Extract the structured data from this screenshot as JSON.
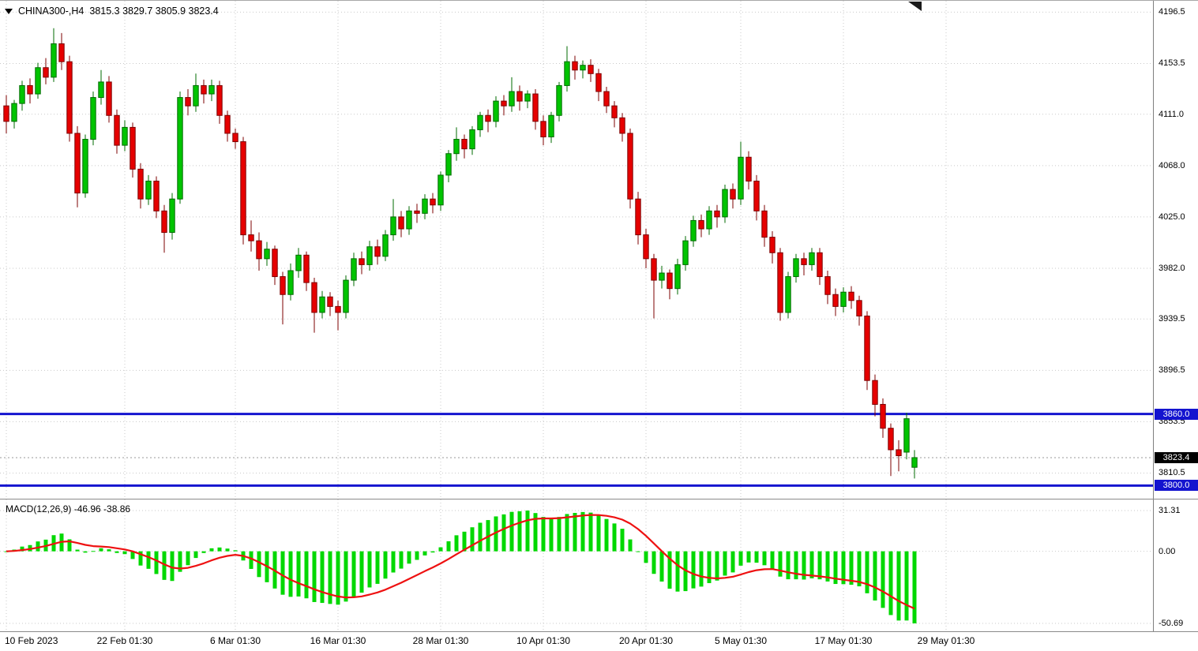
{
  "header": {
    "symbol": "CHINA300-,H4",
    "ohlc": "3815.3 3829.7 3805.9 3823.4"
  },
  "macd_panel": {
    "label": "MACD(12,26,9) -46.96 -38.86",
    "tick_max": "31.31",
    "tick_zero": "0.00",
    "tick_min": "-50.69"
  },
  "colors": {
    "bull": "#00c400",
    "bull_stroke": "#006b00",
    "bear": "#e60000",
    "bear_stroke": "#7d0000",
    "histogram": "#00d800",
    "signal_line": "#ee1111",
    "level_line": "#1414cf",
    "current_badge_bg": "#000000",
    "grid": "#c9c9c9",
    "text": "#000000",
    "axis_border": "#808080",
    "shift_marker": "#1a1a1a"
  },
  "chart_data": {
    "type": "candlestick",
    "title": "CHINA300- H4 with MACD(12,26,9)",
    "price_range": {
      "top": 4206,
      "bottom": 3789
    },
    "price_ticks": [
      {
        "value": 4196.5,
        "label": "4196.5"
      },
      {
        "value": 4153.5,
        "label": "4153.5"
      },
      {
        "value": 4111.0,
        "label": "4111.0"
      },
      {
        "value": 4068.0,
        "label": "4068.0"
      },
      {
        "value": 4025.0,
        "label": "4025.0"
      },
      {
        "value": 3982.0,
        "label": "3982.0"
      },
      {
        "value": 3939.5,
        "label": "3939.5"
      },
      {
        "value": 3896.5,
        "label": "3896.5"
      },
      {
        "value": 3853.5,
        "label": "3853.5"
      },
      {
        "value": 3810.5,
        "label": "3810.5"
      }
    ],
    "levels": [
      {
        "value": 3860.0,
        "label": "3860.0"
      },
      {
        "value": 3800.0,
        "label": "3800.0"
      }
    ],
    "current_price": {
      "value": 3823.4,
      "label": "3823.4"
    },
    "x_ticks": [
      {
        "index": 0,
        "label": "10 Feb 2023"
      },
      {
        "index": 15,
        "label": "22 Feb 01:30"
      },
      {
        "index": 29,
        "label": "6 Mar 01:30"
      },
      {
        "index": 42,
        "label": "16 Mar 01:30"
      },
      {
        "index": 55,
        "label": "28 Mar 01:30"
      },
      {
        "index": 68,
        "label": "10 Apr 01:30"
      },
      {
        "index": 81,
        "label": "20 Apr 01:30"
      },
      {
        "index": 93,
        "label": "5 May 01:30"
      },
      {
        "index": 106,
        "label": "17 May 01:30"
      },
      {
        "index": 119,
        "label": "29 May 01:30"
      }
    ],
    "candles": [
      [
        4118,
        4127,
        4095,
        4105
      ],
      [
        4105,
        4123,
        4099,
        4120
      ],
      [
        4120,
        4139,
        4114,
        4135
      ],
      [
        4135,
        4141,
        4120,
        4128
      ],
      [
        4128,
        4154,
        4124,
        4150
      ],
      [
        4150,
        4158,
        4136,
        4142
      ],
      [
        4142,
        4183,
        4138,
        4170
      ],
      [
        4170,
        4179,
        4148,
        4155
      ],
      [
        4155,
        4160,
        4088,
        4095
      ],
      [
        4095,
        4101,
        4033,
        4045
      ],
      [
        4045,
        4094,
        4041,
        4090
      ],
      [
        4090,
        4130,
        4085,
        4125
      ],
      [
        4125,
        4148,
        4119,
        4138
      ],
      [
        4138,
        4143,
        4104,
        4110
      ],
      [
        4110,
        4115,
        4078,
        4085
      ],
      [
        4085,
        4106,
        4080,
        4100
      ],
      [
        4100,
        4104,
        4058,
        4065
      ],
      [
        4065,
        4070,
        4032,
        4040
      ],
      [
        4040,
        4060,
        4035,
        4055
      ],
      [
        4055,
        4059,
        4024,
        4030
      ],
      [
        4030,
        4035,
        3995,
        4012
      ],
      [
        4012,
        4045,
        4006,
        4040
      ],
      [
        4040,
        4130,
        4036,
        4125
      ],
      [
        4125,
        4132,
        4110,
        4118
      ],
      [
        4118,
        4145,
        4113,
        4135
      ],
      [
        4135,
        4140,
        4120,
        4128
      ],
      [
        4128,
        4140,
        4122,
        4135
      ],
      [
        4135,
        4139,
        4103,
        4110
      ],
      [
        4110,
        4114,
        4088,
        4095
      ],
      [
        4095,
        4099,
        4082,
        4088
      ],
      [
        4088,
        4092,
        4002,
        4010
      ],
      [
        4010,
        4022,
        3996,
        4005
      ],
      [
        4005,
        4012,
        3980,
        3990
      ],
      [
        3990,
        4004,
        3984,
        3998
      ],
      [
        3998,
        4001,
        3968,
        3975
      ],
      [
        3975,
        3979,
        3935,
        3960
      ],
      [
        3960,
        3986,
        3955,
        3980
      ],
      [
        3980,
        3999,
        3974,
        3993
      ],
      [
        3993,
        3996,
        3963,
        3970
      ],
      [
        3970,
        3974,
        3928,
        3945
      ],
      [
        3945,
        3963,
        3940,
        3958
      ],
      [
        3958,
        3962,
        3942,
        3950
      ],
      [
        3950,
        3955,
        3930,
        3945
      ],
      [
        3945,
        3976,
        3940,
        3972
      ],
      [
        3972,
        3995,
        3967,
        3990
      ],
      [
        3990,
        3996,
        3977,
        3985
      ],
      [
        3985,
        4005,
        3980,
        4000
      ],
      [
        4000,
        4006,
        3985,
        3992
      ],
      [
        3992,
        4014,
        3988,
        4010
      ],
      [
        4010,
        4040,
        4005,
        4025
      ],
      [
        4025,
        4030,
        4008,
        4015
      ],
      [
        4015,
        4034,
        4010,
        4030
      ],
      [
        4030,
        4036,
        4020,
        4028
      ],
      [
        4028,
        4044,
        4023,
        4040
      ],
      [
        4040,
        4045,
        4028,
        4035
      ],
      [
        4035,
        4063,
        4030,
        4060
      ],
      [
        4060,
        4081,
        4054,
        4078
      ],
      [
        4078,
        4100,
        4072,
        4090
      ],
      [
        4090,
        4094,
        4074,
        4082
      ],
      [
        4082,
        4101,
        4077,
        4098
      ],
      [
        4098,
        4113,
        4092,
        4110
      ],
      [
        4110,
        4115,
        4096,
        4105
      ],
      [
        4105,
        4126,
        4100,
        4122
      ],
      [
        4122,
        4127,
        4110,
        4118
      ],
      [
        4118,
        4142,
        4113,
        4130
      ],
      [
        4130,
        4135,
        4114,
        4122
      ],
      [
        4122,
        4131,
        4116,
        4128
      ],
      [
        4128,
        4132,
        4098,
        4105
      ],
      [
        4105,
        4110,
        4085,
        4092
      ],
      [
        4092,
        4113,
        4087,
        4110
      ],
      [
        4110,
        4138,
        4105,
        4135
      ],
      [
        4135,
        4168,
        4130,
        4155
      ],
      [
        4155,
        4160,
        4140,
        4148
      ],
      [
        4148,
        4156,
        4141,
        4152
      ],
      [
        4152,
        4157,
        4138,
        4145
      ],
      [
        4145,
        4149,
        4122,
        4130
      ],
      [
        4130,
        4134,
        4112,
        4118
      ],
      [
        4118,
        4122,
        4100,
        4108
      ],
      [
        4108,
        4112,
        4088,
        4095
      ],
      [
        4095,
        4099,
        4032,
        4040
      ],
      [
        4040,
        4046,
        4002,
        4010
      ],
      [
        4010,
        4015,
        3982,
        3990
      ],
      [
        3990,
        3994,
        3940,
        3972
      ],
      [
        3972,
        3984,
        3965,
        3978
      ],
      [
        3978,
        3981,
        3956,
        3965
      ],
      [
        3965,
        3990,
        3960,
        3985
      ],
      [
        3985,
        4009,
        3980,
        4005
      ],
      [
        4005,
        4026,
        4000,
        4022
      ],
      [
        4022,
        4027,
        4008,
        4015
      ],
      [
        4015,
        4034,
        4010,
        4030
      ],
      [
        4030,
        4035,
        4016,
        4025
      ],
      [
        4025,
        4052,
        4020,
        4048
      ],
      [
        4048,
        4053,
        4032,
        4040
      ],
      [
        4040,
        4088,
        4035,
        4075
      ],
      [
        4075,
        4080,
        4048,
        4055
      ],
      [
        4055,
        4060,
        4022,
        4030
      ],
      [
        4030,
        4035,
        4000,
        4008
      ],
      [
        4008,
        4013,
        3986,
        3995
      ],
      [
        3995,
        3999,
        3938,
        3945
      ],
      [
        3945,
        3979,
        3940,
        3975
      ],
      [
        3975,
        3994,
        3970,
        3990
      ],
      [
        3990,
        3995,
        3976,
        3985
      ],
      [
        3985,
        3999,
        3980,
        3995
      ],
      [
        3995,
        3999,
        3968,
        3975
      ],
      [
        3975,
        3980,
        3952,
        3960
      ],
      [
        3960,
        3965,
        3942,
        3950
      ],
      [
        3950,
        3966,
        3945,
        3962
      ],
      [
        3962,
        3967,
        3948,
        3955
      ],
      [
        3955,
        3959,
        3934,
        3942
      ],
      [
        3942,
        3946,
        3880,
        3888
      ],
      [
        3888,
        3893,
        3858,
        3868
      ],
      [
        3868,
        3873,
        3840,
        3848
      ],
      [
        3848,
        3852,
        3808,
        3830
      ],
      [
        3830,
        3838,
        3812,
        3825
      ],
      [
        3828,
        3861,
        3822,
        3856
      ],
      [
        3815.3,
        3829.7,
        3805.9,
        3823.4
      ]
    ],
    "macd": {
      "fast": 12,
      "slow": 26,
      "signal": 9,
      "last_macd": -46.96,
      "last_signal": -38.86
    }
  }
}
